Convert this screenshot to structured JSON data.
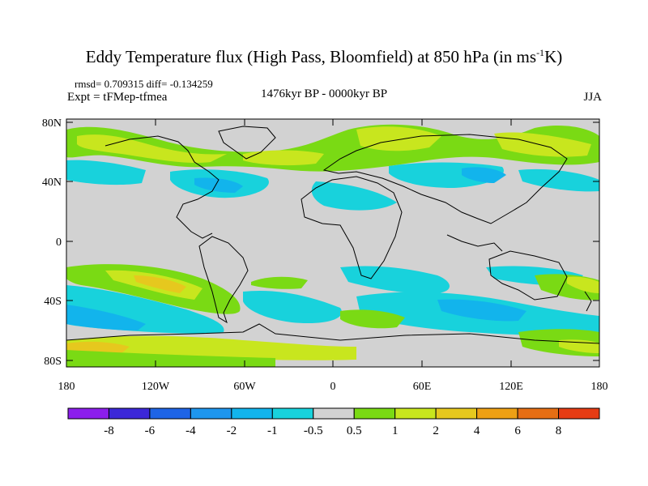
{
  "title": {
    "text": "Eddy Temperature flux (High Pass, Bloomfield) at 850 hPa (in ms",
    "sup": "-1",
    "suffix": "K)"
  },
  "stats": "rmsd= 0.709315 diff= -0.134259",
  "expt": "Expt = tFMep-tfmea",
  "period": "1476kyr BP - 0000kyr BP",
  "season": "JJA",
  "axes": {
    "y_labels": [
      "80N",
      "40N",
      "0",
      "40S",
      "80S"
    ],
    "x_labels": [
      "180",
      "120W",
      "60W",
      "0",
      "60E",
      "120E",
      "180"
    ]
  },
  "colorbar": {
    "labels": [
      "-8",
      "-6",
      "-4",
      "-2",
      "-1",
      "-0.5",
      "0.5",
      "1",
      "2",
      "4",
      "6",
      "8"
    ],
    "colors": [
      "#8c1eec",
      "#3c28d8",
      "#1e64e6",
      "#1e96ee",
      "#12b4ec",
      "#18d2dc",
      "#d2d2d2",
      "#7ada14",
      "#c8e61e",
      "#e6c81e",
      "#eea014",
      "#e66e14",
      "#e63c14"
    ]
  },
  "palette": {
    "ocean_gray": "#d2d2d2",
    "coast": "#000000"
  }
}
